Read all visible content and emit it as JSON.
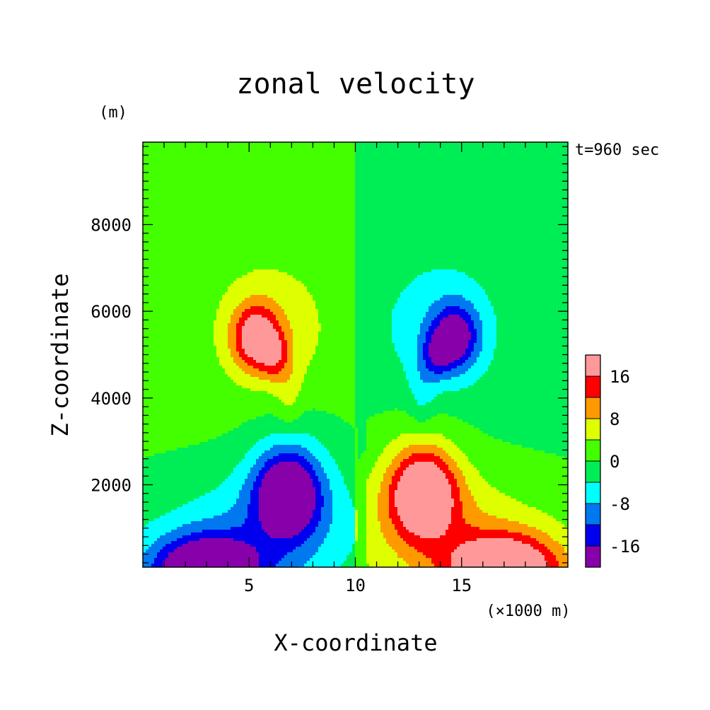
{
  "chart_data": {
    "type": "heatmap",
    "title": "zonal velocity",
    "xlabel": "X-coordinate",
    "ylabel": "Z-coordinate",
    "x_unit": "(×1000 m)",
    "y_unit": "(m)",
    "time_label": "t=960 sec",
    "xlim": [
      0,
      20
    ],
    "ylim": [
      100,
      9900
    ],
    "x_ticks": [
      5,
      10,
      15
    ],
    "y_ticks": [
      2000,
      4000,
      6000,
      8000
    ],
    "x_tick_labels": [
      "5",
      "10",
      "15"
    ],
    "y_tick_labels": [
      "2000",
      "4000",
      "6000",
      "8000"
    ],
    "colorbar": {
      "levels": [
        -20,
        -16,
        -12,
        -8,
        -4,
        0,
        4,
        8,
        12,
        16,
        20
      ],
      "colors": [
        "#8800aa",
        "#0000ee",
        "#0078f0",
        "#00ffff",
        "#00ee55",
        "#44ff00",
        "#ddff00",
        "#ff9900",
        "#ff0000",
        "#ff9999"
      ],
      "tick_values": [
        16,
        8,
        0,
        -8,
        -16
      ],
      "tick_labels": [
        "16",
        "8",
        "0",
        "-8",
        "-16"
      ]
    },
    "features": [
      {
        "x": 5.3,
        "z": 5400,
        "sign": 1,
        "amp": 16,
        "sx": 0.75,
        "sz": 520
      },
      {
        "x": 6.2,
        "z": 5000,
        "sign": 1,
        "amp": 8,
        "sx": 0.5,
        "sz": 380
      },
      {
        "x": 6.0,
        "z": 5600,
        "sign": 1,
        "amp": 6,
        "sx": 2.2,
        "sz": 1250
      },
      {
        "x": 6.8,
        "z": 4300,
        "sign": 1,
        "amp": 3,
        "sx": 0.5,
        "sz": 450
      },
      {
        "x": 6.9,
        "z": 3700,
        "sign": 1,
        "amp": 2,
        "sx": 0.35,
        "sz": 450
      },
      {
        "x": 6.8,
        "z": 1800,
        "sign": -1,
        "amp": 18,
        "sx": 1.0,
        "sz": 650
      },
      {
        "x": 6.9,
        "z": 2200,
        "sign": -1,
        "amp": 6,
        "sx": 1.6,
        "sz": 1100
      },
      {
        "x": 6.5,
        "z": 1200,
        "sign": -1,
        "amp": 5,
        "sx": 3.2,
        "sz": 900
      },
      {
        "x": 3.0,
        "z": 0,
        "sign": -1,
        "amp": 24,
        "sx": 1.7,
        "sz": 550
      },
      {
        "x": 3.5,
        "z": 0,
        "sign": -1,
        "amp": 6,
        "sx": 4.5,
        "sz": 1200
      }
    ]
  }
}
